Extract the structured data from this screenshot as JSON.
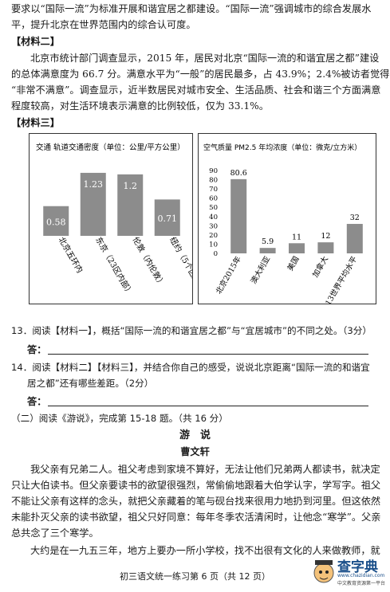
{
  "lines": {
    "l1": "要求以“国际一流”为标准开展和谐宜居之都建设。“国际一流”强调城市的综合发展水",
    "l2": "平，提升北京在世界范围内的综合认可度。",
    "m2_head": "【材料二】",
    "m2_p1": "北京市统计部门调查显示，2015 年，居民对北京“国际一流的和谐宜居之都”建设",
    "m2_p2": "的总体满意度为 66.7 分。满意水平为“一般”的居民最多，占 43.9%；2.4%被访者觉得",
    "m2_p3": "“非常不满意”。调查显示，近半数居民对城市安全、生活品质、社会和谐三个方面满意",
    "m2_p4": "程度较高，对生活环境表示满意的比例较低，仅为 33.1%。",
    "m3_head": "【材料三】"
  },
  "chart_data": [
    {
      "type": "bar",
      "title": "交通  轨道交通密度（单位：公里/平方公里）",
      "categories": [
        "北京五环内",
        "东京（23区内部）",
        "伦敦（内伦敦）",
        "纽约（5个区）"
      ],
      "values": [
        0.58,
        1.23,
        1.2,
        0.71
      ],
      "value_labels": [
        "0.58",
        "1.23",
        "1.2",
        "0.71"
      ],
      "ylim": [
        0,
        1.4
      ],
      "bar_color": "#8c8c8c"
    },
    {
      "type": "bar",
      "title": "空气质量 PM2.5 年均浓度（单位：微克/立方米）",
      "categories": [
        "北京2015年",
        "澳大利亚",
        "美国",
        "加拿大",
        "2013世界平均水平"
      ],
      "values": [
        80.6,
        5.9,
        11,
        12,
        32
      ],
      "value_labels": [
        "80.6",
        "5.9",
        "11",
        "12",
        "32"
      ],
      "yticks": [
        0,
        10,
        20,
        30,
        40,
        50,
        60,
        70,
        80,
        90
      ],
      "ylim": [
        0,
        90
      ],
      "bar_color": "#8c8c8c"
    }
  ],
  "questions": {
    "q13": "13．阅读【材料一】，概括“国际一流的和谐宜居之都”与“宜居城市”的不同之处。（3分）",
    "q13_ans": "答：",
    "q14a": "14．阅读【材料二】【材料三】，并结合你自己的感受，说说北京距离“国际一流的和谐宜",
    "q14b": "居之都”还有哪些差距。（2分）",
    "q14_ans": "答："
  },
  "section": {
    "head": "（二）阅读《游说》，完成第 15-18 题。（共 16 分）",
    "title": "游　说",
    "author": "曹文轩",
    "p1": "我父亲有兄弟二人。祖父考虑到家境不算好，无法让他们兄弟两人都读书，就决定",
    "p2": "只让大伯读书。但父亲要读书的欲望很强烈，常偷偷地跟着大伯学认字，学写字。祖父",
    "p3": "不能让父亲有这样的念头，就把父亲藏着的笔与砚台找来很用力地扔到河里。但这依然",
    "p4": "未能扑灭父亲的读书欲望，祖父只好同意：每年冬季农活清闲时，让他念“寒学”。父亲",
    "p5": "总共念了三个寒学。",
    "p6": "大约是在一九五三年，地方上要办一所小学校，找不出很有文化的人来做教师，就"
  },
  "footer": "初三语文统一练习第 6 页（共 12 页）",
  "logo": {
    "name": "查字典",
    "url_text": "www.chazidian.com",
    "sub": "中文教育资源第一平台"
  }
}
